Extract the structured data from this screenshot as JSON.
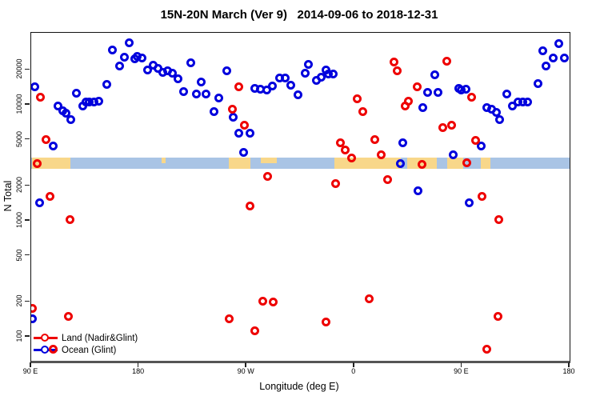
{
  "title": "15N-20N March (Ver 9)   2014-09-06 to 2018-12-31",
  "legend": {
    "items": [
      {
        "label": "Land (Nadir&Glint)",
        "color": "#EE0000"
      },
      {
        "label": "Ocean (Glint)",
        "color": "#0000DD"
      }
    ]
  },
  "chart_data": {
    "type": "scatter",
    "title": "15N-20N March (Ver 9)   2014-09-06 to 2018-12-31",
    "xlabel": "Longitude (deg E)",
    "ylabel": "N Total",
    "x_axis": {
      "note": "longitude plotted continuously eastward starting at 90E; 450 deg span",
      "tick_lons": [
        90,
        180,
        270,
        360,
        450,
        540
      ],
      "tick_labels": [
        "90 E",
        "180",
        "90 W",
        "0",
        "90 E",
        "180"
      ],
      "range": [
        90,
        540
      ],
      "grid": false
    },
    "y_axis": {
      "scale": "log",
      "ticks": [
        100,
        200,
        500,
        1000,
        2000,
        5000,
        10000,
        20000
      ],
      "range": [
        63,
        41000
      ],
      "grid": false
    },
    "map_band": {
      "description": "world-map strip for the 15N-20N latitude band drawn across the plot",
      "ocean_color": "#A9C4E5",
      "land_color": "#F8D78A",
      "n_range": [
        2790,
        3500
      ],
      "land_segments_lon": [
        [
          91,
          123,
          "full"
        ],
        [
          199,
          202.5,
          "top"
        ],
        [
          255,
          273,
          "full"
        ],
        [
          282,
          295,
          "top"
        ],
        [
          343.4,
          399,
          "full"
        ],
        [
          404,
          429,
          "full"
        ],
        [
          437.7,
          451,
          "full"
        ],
        [
          465.8,
          473.8,
          "full"
        ]
      ]
    },
    "series": [
      {
        "name": "Land (Nadir&Glint)",
        "color": "#EE0000",
        "points": [
          [
            98.0,
            11700
          ],
          [
            102.7,
            5000
          ],
          [
            94.7,
            3100
          ],
          [
            105.4,
            1630
          ],
          [
            122.1,
            1020
          ],
          [
            120.8,
            151
          ],
          [
            108.1,
            78
          ],
          [
            90.7,
            177
          ],
          [
            257.9,
            9100
          ],
          [
            263.2,
            14200
          ],
          [
            267.9,
            6700
          ],
          [
            272.6,
            1350
          ],
          [
            287.9,
            2430
          ],
          [
            255.2,
            142
          ],
          [
            276.6,
            112
          ],
          [
            283.3,
            204
          ],
          [
            292.6,
            201
          ],
          [
            336.1,
            135
          ],
          [
            344.1,
            2100
          ],
          [
            348.1,
            4700
          ],
          [
            352.2,
            4050
          ],
          [
            357.5,
            3500
          ],
          [
            362.2,
            11200
          ],
          [
            366.9,
            8700
          ],
          [
            372.2,
            211
          ],
          [
            377.5,
            5050
          ],
          [
            382.2,
            3700
          ],
          [
            387.6,
            2250
          ],
          [
            392.9,
            23300
          ],
          [
            395.6,
            19500
          ],
          [
            402.3,
            9800
          ],
          [
            405.6,
            10800
          ],
          [
            412.3,
            14200
          ],
          [
            416.9,
            3040
          ],
          [
            433.8,
            6400
          ],
          [
            437.1,
            23600
          ],
          [
            441.1,
            6700
          ],
          [
            454.4,
            3180
          ],
          [
            457.8,
            11700
          ],
          [
            461.1,
            4900
          ],
          [
            467.1,
            1630
          ],
          [
            470.5,
            78
          ],
          [
            479.9,
            151
          ],
          [
            481.1,
            1020
          ]
        ]
      },
      {
        "name": "Ocean (Glint)",
        "color": "#0000DD",
        "points": [
          [
            90.7,
            144
          ],
          [
            93.3,
            14200
          ],
          [
            96.7,
            1440
          ],
          [
            108.7,
            4400
          ],
          [
            112.7,
            9700
          ],
          [
            116.1,
            8900
          ],
          [
            119.4,
            8400
          ],
          [
            123.4,
            7400
          ],
          [
            128.1,
            12500
          ],
          [
            132.8,
            9800
          ],
          [
            136.1,
            10600
          ],
          [
            138.8,
            10500
          ],
          [
            142.8,
            10600
          ],
          [
            146.2,
            10800
          ],
          [
            153.5,
            15100
          ],
          [
            158.2,
            29900
          ],
          [
            163.6,
            21700
          ],
          [
            168.2,
            25800
          ],
          [
            172.2,
            34400
          ],
          [
            176.3,
            25000
          ],
          [
            178.9,
            26300
          ],
          [
            182.3,
            25400
          ],
          [
            187.6,
            20100
          ],
          [
            192.3,
            22100
          ],
          [
            196.3,
            20700
          ],
          [
            200.3,
            19100
          ],
          [
            204.3,
            19700
          ],
          [
            207.7,
            18800
          ],
          [
            212.4,
            16800
          ],
          [
            217.7,
            12900
          ],
          [
            223.1,
            23100
          ],
          [
            227.8,
            12300
          ],
          [
            232.4,
            15800
          ],
          [
            235.8,
            12300
          ],
          [
            243.1,
            8800
          ],
          [
            247.1,
            11500
          ],
          [
            253.2,
            19700
          ],
          [
            258.5,
            7800
          ],
          [
            263.2,
            5700
          ],
          [
            267.2,
            3900
          ],
          [
            273.2,
            5700
          ],
          [
            277.2,
            13800
          ],
          [
            281.9,
            13600
          ],
          [
            286.6,
            13400
          ],
          [
            291.9,
            14600
          ],
          [
            297.3,
            17100
          ],
          [
            302.6,
            17100
          ],
          [
            307.3,
            14800
          ],
          [
            312.7,
            12100
          ],
          [
            318.7,
            18800
          ],
          [
            322.0,
            22400
          ],
          [
            328.1,
            16300
          ],
          [
            332.1,
            17400
          ],
          [
            336.7,
            20100
          ],
          [
            338.1,
            18500
          ],
          [
            342.1,
            18500
          ],
          [
            398.9,
            3100
          ],
          [
            400.9,
            4700
          ],
          [
            413.6,
            1800
          ],
          [
            417.6,
            9500
          ],
          [
            421.6,
            12700
          ],
          [
            427.0,
            18200
          ],
          [
            430.3,
            12700
          ],
          [
            442.4,
            3700
          ],
          [
            447.1,
            13800
          ],
          [
            449.7,
            13500
          ],
          [
            453.1,
            13600
          ],
          [
            455.8,
            1440
          ],
          [
            466.4,
            4400
          ],
          [
            471.1,
            9500
          ],
          [
            474.5,
            9100
          ],
          [
            478.5,
            8600
          ],
          [
            481.8,
            7500
          ],
          [
            487.2,
            12300
          ],
          [
            492.5,
            9800
          ],
          [
            497.2,
            10600
          ],
          [
            500.6,
            10500
          ],
          [
            505.2,
            10600
          ],
          [
            513.3,
            15300
          ],
          [
            517.3,
            29000
          ],
          [
            520.6,
            21700
          ],
          [
            526.6,
            25400
          ],
          [
            531.3,
            33900
          ],
          [
            535.4,
            25400
          ]
        ]
      }
    ]
  }
}
